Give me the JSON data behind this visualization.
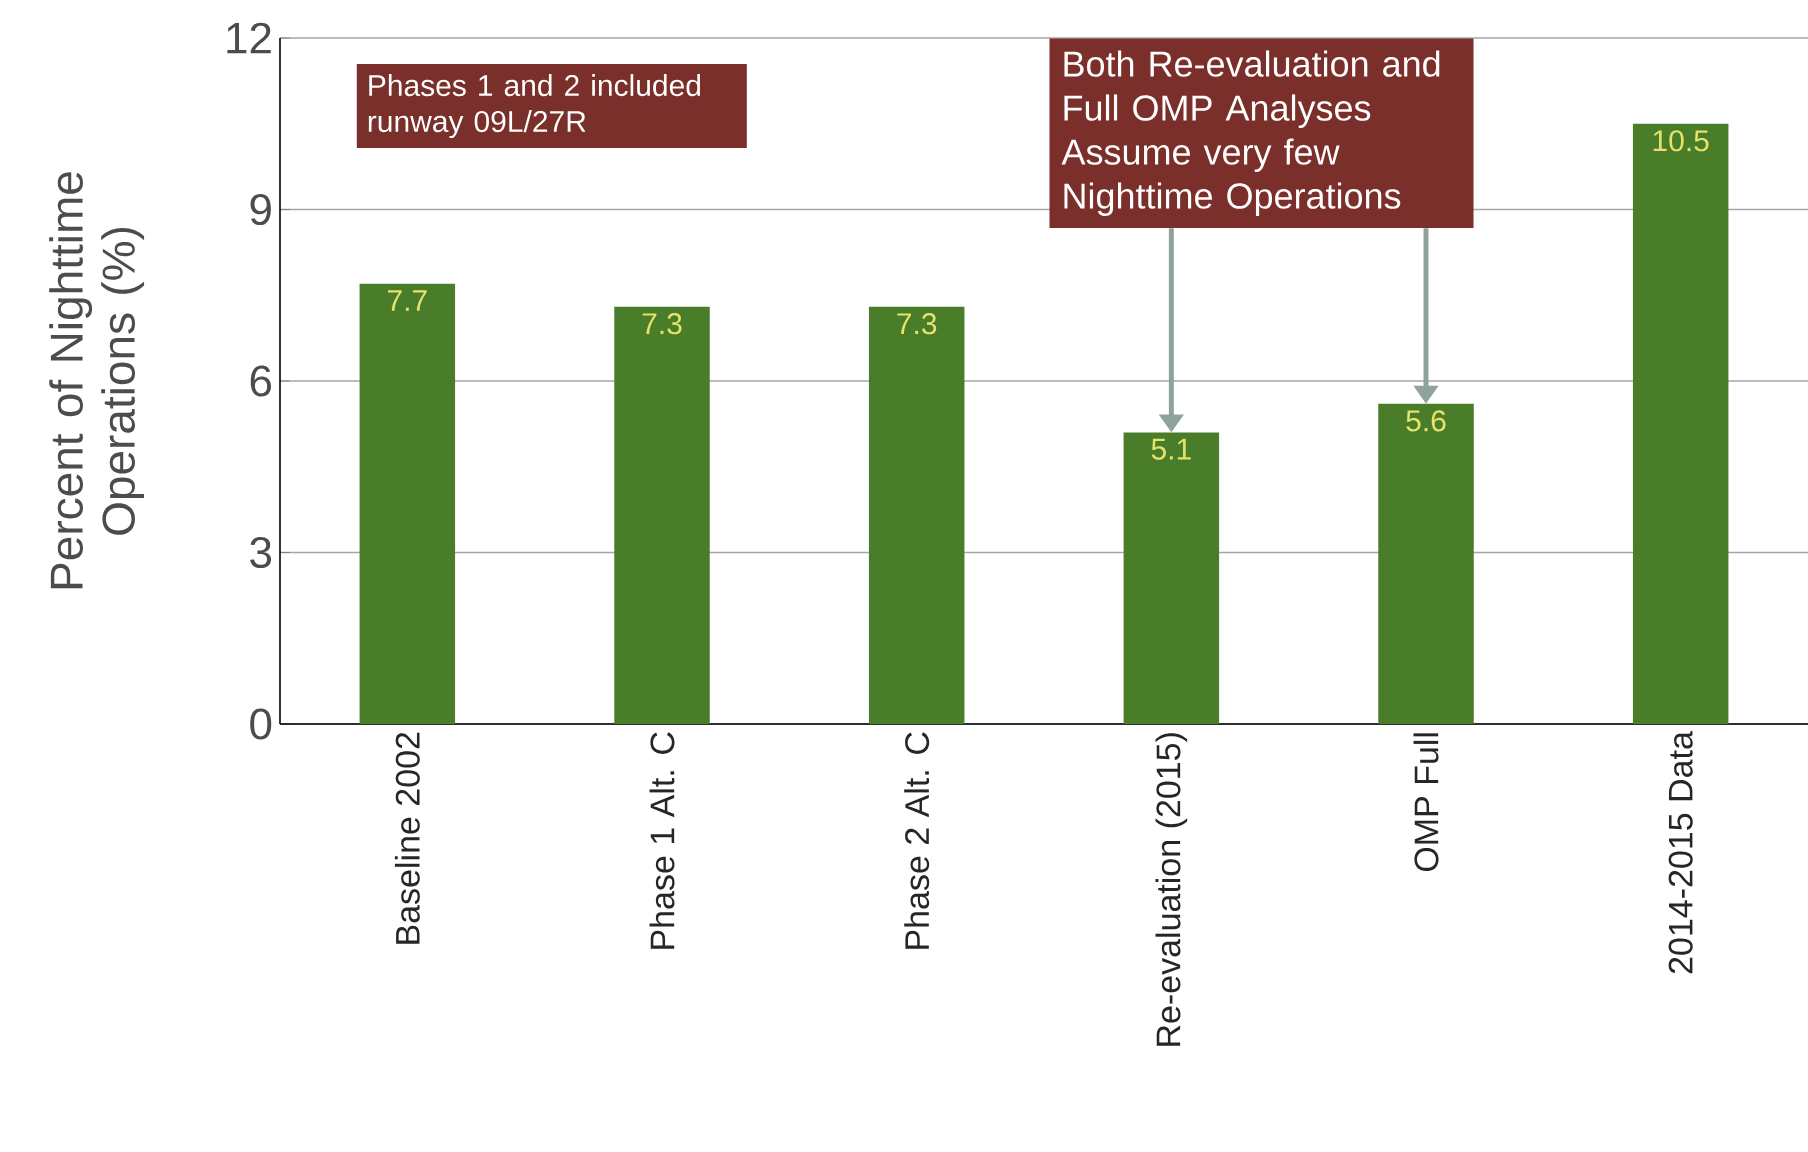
{
  "chart_data": {
    "type": "bar",
    "ylabel": "Percent of Nighttime Operations (%)",
    "categories": [
      "Baseline 2002",
      "Phase 1 Alt. C",
      "Phase 2 Alt. C",
      "Re-evaluation (2015)",
      "OMP Full",
      "2014-2015 Data"
    ],
    "values": [
      7.7,
      7.3,
      7.3,
      5.1,
      5.6,
      10.5
    ],
    "color": "#4a7d2a",
    "ylim": [
      0,
      12
    ],
    "yticks": [
      0,
      3,
      6,
      9,
      12
    ],
    "grid": "y",
    "data_labels": true,
    "annotations": [
      "Phases 1 and 2 included runway 09L/27R",
      {
        "text": "Both Re-evaluation and Full OMP Analyses Assume very few Nighttime Operations",
        "x": "Re-evaluation (2015)",
        "y": 5.1
      }
    ]
  }
}
